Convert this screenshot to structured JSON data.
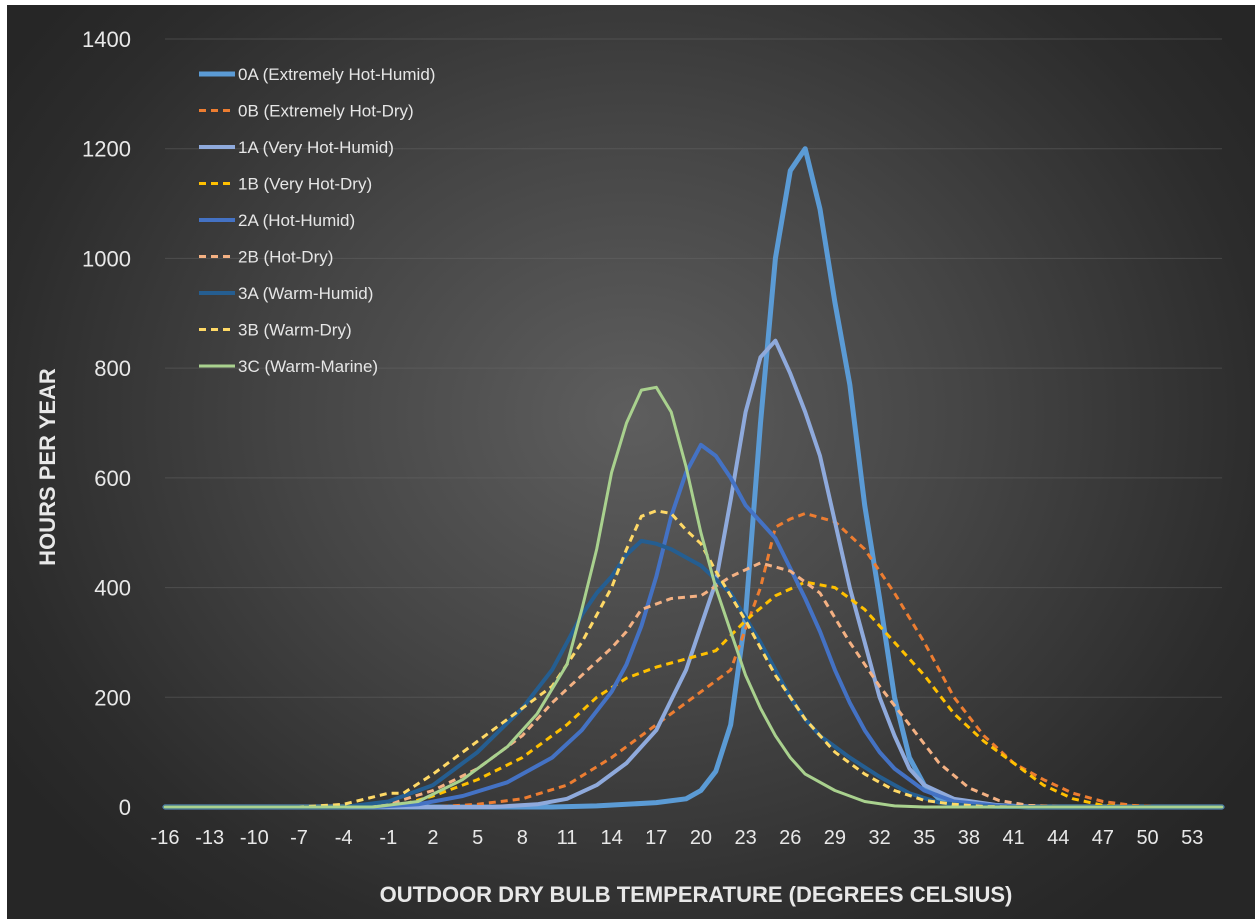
{
  "chart_data": {
    "type": "line",
    "xlabel": "OUTDOOR DRY BULB TEMPERATURE (DEGREES CELSIUS)",
    "ylabel": "HOURS PER YEAR",
    "ylim": [
      0,
      1400
    ],
    "yticks": [
      "0",
      "200",
      "400",
      "600",
      "800",
      "1000",
      "1200",
      "1400"
    ],
    "xlim": [
      -16,
      55
    ],
    "xticks": [
      "-16",
      "-13",
      "-10",
      "-7",
      "-4",
      "-1",
      "2",
      "5",
      "8",
      "11",
      "14",
      "17",
      "20",
      "23",
      "26",
      "29",
      "32",
      "35",
      "38",
      "41",
      "44",
      "47",
      "50",
      "53"
    ],
    "grid": "horizontal",
    "legend_position": "top-left",
    "series": [
      {
        "name": "0A (Extremely Hot-Humid)",
        "color": "#5b9bd5",
        "dashed": false,
        "width": 5,
        "points": [
          [
            -16,
            0
          ],
          [
            10,
            0
          ],
          [
            13,
            2
          ],
          [
            15,
            5
          ],
          [
            17,
            8
          ],
          [
            19,
            15
          ],
          [
            20,
            30
          ],
          [
            21,
            65
          ],
          [
            22,
            150
          ],
          [
            23,
            350
          ],
          [
            24,
            700
          ],
          [
            25,
            1000
          ],
          [
            26,
            1160
          ],
          [
            27,
            1200
          ],
          [
            28,
            1090
          ],
          [
            29,
            920
          ],
          [
            30,
            770
          ],
          [
            31,
            550
          ],
          [
            32,
            380
          ],
          [
            33,
            200
          ],
          [
            34,
            90
          ],
          [
            35,
            40
          ],
          [
            36,
            15
          ],
          [
            38,
            5
          ],
          [
            42,
            0
          ],
          [
            55,
            0
          ]
        ]
      },
      {
        "name": "0B (Extremely Hot-Dry)",
        "color": "#ed7d31",
        "dashed": true,
        "width": 3,
        "points": [
          [
            -16,
            0
          ],
          [
            2,
            0
          ],
          [
            5,
            5
          ],
          [
            8,
            15
          ],
          [
            11,
            40
          ],
          [
            14,
            90
          ],
          [
            17,
            150
          ],
          [
            20,
            210
          ],
          [
            22,
            250
          ],
          [
            24,
            400
          ],
          [
            25,
            510
          ],
          [
            26,
            525
          ],
          [
            27,
            535
          ],
          [
            29,
            520
          ],
          [
            31,
            470
          ],
          [
            33,
            390
          ],
          [
            35,
            300
          ],
          [
            37,
            200
          ],
          [
            39,
            130
          ],
          [
            41,
            80
          ],
          [
            43,
            50
          ],
          [
            45,
            25
          ],
          [
            47,
            10
          ],
          [
            49,
            3
          ],
          [
            51,
            0
          ],
          [
            55,
            0
          ]
        ]
      },
      {
        "name": "1A (Very Hot-Humid)",
        "color": "#8faadc",
        "dashed": false,
        "width": 4,
        "points": [
          [
            -16,
            0
          ],
          [
            6,
            0
          ],
          [
            9,
            5
          ],
          [
            11,
            15
          ],
          [
            13,
            40
          ],
          [
            15,
            80
          ],
          [
            17,
            140
          ],
          [
            19,
            250
          ],
          [
            21,
            410
          ],
          [
            22,
            560
          ],
          [
            23,
            720
          ],
          [
            24,
            820
          ],
          [
            25,
            850
          ],
          [
            26,
            790
          ],
          [
            27,
            720
          ],
          [
            28,
            640
          ],
          [
            29,
            520
          ],
          [
            30,
            400
          ],
          [
            31,
            300
          ],
          [
            32,
            200
          ],
          [
            33,
            130
          ],
          [
            34,
            70
          ],
          [
            35,
            40
          ],
          [
            37,
            15
          ],
          [
            40,
            3
          ],
          [
            43,
            0
          ],
          [
            55,
            0
          ]
        ]
      },
      {
        "name": "1B (Very Hot-Dry)",
        "color": "#ffc000",
        "dashed": true,
        "width": 3,
        "points": [
          [
            -16,
            0
          ],
          [
            -3,
            0
          ],
          [
            0,
            5
          ],
          [
            2,
            20
          ],
          [
            5,
            50
          ],
          [
            8,
            90
          ],
          [
            11,
            150
          ],
          [
            13,
            200
          ],
          [
            15,
            235
          ],
          [
            17,
            255
          ],
          [
            19,
            270
          ],
          [
            21,
            285
          ],
          [
            23,
            340
          ],
          [
            25,
            385
          ],
          [
            27,
            410
          ],
          [
            29,
            400
          ],
          [
            31,
            360
          ],
          [
            33,
            300
          ],
          [
            35,
            240
          ],
          [
            37,
            170
          ],
          [
            39,
            120
          ],
          [
            41,
            80
          ],
          [
            43,
            40
          ],
          [
            45,
            15
          ],
          [
            47,
            3
          ],
          [
            49,
            0
          ],
          [
            55,
            0
          ]
        ]
      },
      {
        "name": "2A (Hot-Humid)",
        "color": "#4472c4",
        "dashed": false,
        "width": 4,
        "points": [
          [
            -16,
            0
          ],
          [
            -2,
            0
          ],
          [
            1,
            5
          ],
          [
            4,
            20
          ],
          [
            7,
            45
          ],
          [
            10,
            90
          ],
          [
            12,
            140
          ],
          [
            14,
            210
          ],
          [
            15,
            260
          ],
          [
            16,
            330
          ],
          [
            17,
            420
          ],
          [
            18,
            530
          ],
          [
            19,
            610
          ],
          [
            20,
            660
          ],
          [
            21,
            640
          ],
          [
            22,
            600
          ],
          [
            23,
            550
          ],
          [
            25,
            490
          ],
          [
            27,
            380
          ],
          [
            28,
            320
          ],
          [
            29,
            250
          ],
          [
            30,
            190
          ],
          [
            31,
            140
          ],
          [
            32,
            100
          ],
          [
            33,
            70
          ],
          [
            35,
            30
          ],
          [
            37,
            10
          ],
          [
            40,
            2
          ],
          [
            43,
            0
          ],
          [
            55,
            0
          ]
        ]
      },
      {
        "name": "2B (Hot-Dry)",
        "color": "#f4b183",
        "dashed": true,
        "width": 3,
        "points": [
          [
            -16,
            0
          ],
          [
            -4,
            0
          ],
          [
            -1,
            5
          ],
          [
            2,
            30
          ],
          [
            5,
            70
          ],
          [
            8,
            130
          ],
          [
            10,
            190
          ],
          [
            12,
            240
          ],
          [
            14,
            290
          ],
          [
            15,
            320
          ],
          [
            16,
            360
          ],
          [
            18,
            380
          ],
          [
            20,
            385
          ],
          [
            22,
            420
          ],
          [
            24,
            445
          ],
          [
            26,
            430
          ],
          [
            28,
            390
          ],
          [
            30,
            300
          ],
          [
            32,
            220
          ],
          [
            34,
            150
          ],
          [
            36,
            80
          ],
          [
            38,
            35
          ],
          [
            40,
            12
          ],
          [
            42,
            3
          ],
          [
            45,
            0
          ],
          [
            55,
            0
          ]
        ]
      },
      {
        "name": "3A (Warm-Humid)",
        "color": "#255e91",
        "dashed": false,
        "width": 4,
        "points": [
          [
            -16,
            0
          ],
          [
            -4,
            0
          ],
          [
            -1,
            10
          ],
          [
            2,
            40
          ],
          [
            5,
            100
          ],
          [
            8,
            180
          ],
          [
            10,
            250
          ],
          [
            11,
            300
          ],
          [
            12,
            350
          ],
          [
            13,
            390
          ],
          [
            14,
            420
          ],
          [
            15,
            460
          ],
          [
            16,
            485
          ],
          [
            17,
            480
          ],
          [
            18,
            470
          ],
          [
            20,
            440
          ],
          [
            22,
            390
          ],
          [
            24,
            300
          ],
          [
            25,
            250
          ],
          [
            26,
            200
          ],
          [
            27,
            160
          ],
          [
            28,
            130
          ],
          [
            30,
            90
          ],
          [
            32,
            55
          ],
          [
            34,
            25
          ],
          [
            36,
            8
          ],
          [
            38,
            2
          ],
          [
            40,
            0
          ],
          [
            55,
            0
          ]
        ]
      },
      {
        "name": "3B (Warm-Dry)",
        "color": "#ffd966",
        "dashed": true,
        "width": 3,
        "points": [
          [
            -16,
            0
          ],
          [
            -7,
            0
          ],
          [
            -4,
            5
          ],
          [
            -1,
            25
          ],
          [
            0,
            25
          ],
          [
            2,
            60
          ],
          [
            5,
            120
          ],
          [
            8,
            180
          ],
          [
            10,
            220
          ],
          [
            12,
            300
          ],
          [
            14,
            400
          ],
          [
            15,
            470
          ],
          [
            16,
            530
          ],
          [
            17,
            540
          ],
          [
            18,
            535
          ],
          [
            19,
            505
          ],
          [
            20,
            480
          ],
          [
            21,
            430
          ],
          [
            23,
            340
          ],
          [
            25,
            240
          ],
          [
            27,
            160
          ],
          [
            29,
            100
          ],
          [
            31,
            60
          ],
          [
            33,
            30
          ],
          [
            35,
            12
          ],
          [
            37,
            5
          ],
          [
            39,
            1
          ],
          [
            41,
            0
          ],
          [
            55,
            0
          ]
        ]
      },
      {
        "name": "3C (Warm-Marine)",
        "color": "#a9d18e",
        "dashed": false,
        "width": 3,
        "points": [
          [
            -16,
            0
          ],
          [
            -2,
            0
          ],
          [
            1,
            10
          ],
          [
            4,
            50
          ],
          [
            7,
            110
          ],
          [
            9,
            170
          ],
          [
            11,
            260
          ],
          [
            12,
            360
          ],
          [
            13,
            470
          ],
          [
            14,
            610
          ],
          [
            15,
            700
          ],
          [
            16,
            760
          ],
          [
            17,
            765
          ],
          [
            18,
            720
          ],
          [
            19,
            620
          ],
          [
            20,
            500
          ],
          [
            21,
            400
          ],
          [
            22,
            320
          ],
          [
            23,
            240
          ],
          [
            24,
            180
          ],
          [
            25,
            130
          ],
          [
            26,
            90
          ],
          [
            27,
            60
          ],
          [
            29,
            30
          ],
          [
            31,
            10
          ],
          [
            33,
            2
          ],
          [
            35,
            0
          ],
          [
            55,
            0
          ]
        ]
      }
    ]
  }
}
